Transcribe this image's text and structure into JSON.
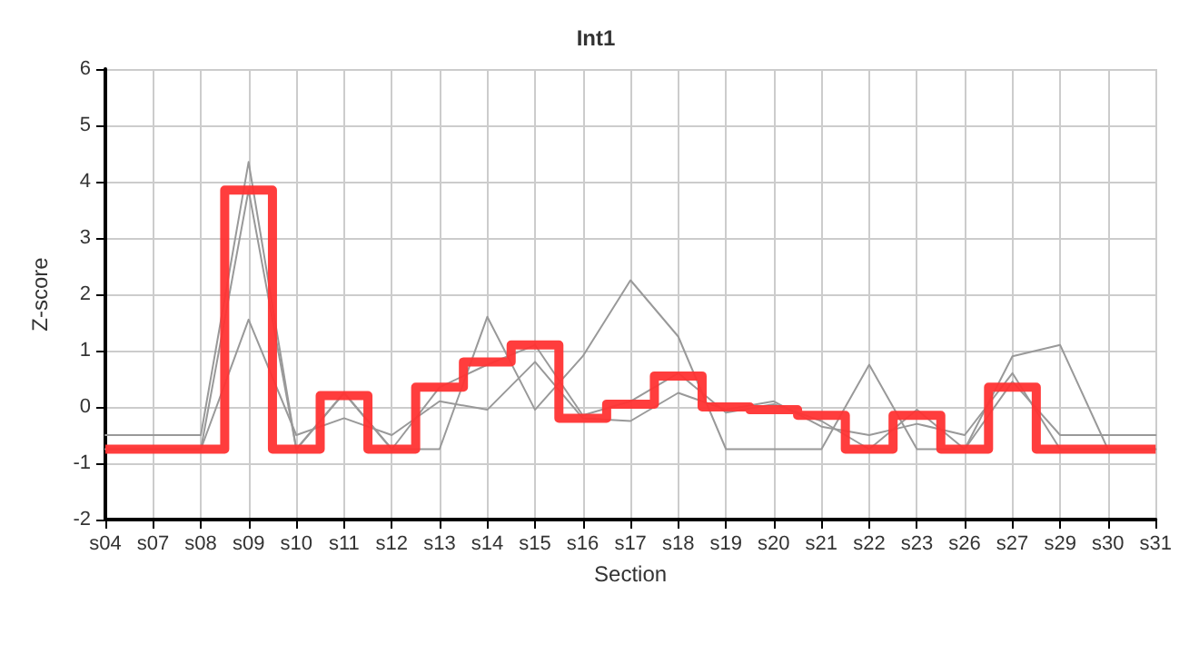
{
  "chart_data": {
    "type": "line",
    "title": "Int1",
    "xlabel": "Section",
    "ylabel": "Z-score",
    "categories": [
      "s04",
      "s07",
      "s08",
      "s09",
      "s10",
      "s11",
      "s12",
      "s13",
      "s14",
      "s15",
      "s16",
      "s17",
      "s18",
      "s19",
      "s20",
      "s21",
      "s22",
      "s23",
      "s26",
      "s27",
      "s29",
      "s30",
      "s31"
    ],
    "series": [
      {
        "color": "#999999",
        "values": [
          -0.5,
          -0.5,
          -0.5,
          4.35,
          -0.75,
          0.25,
          -0.75,
          0.35,
          0.75,
          1.1,
          -0.15,
          0.1,
          0.6,
          -0.1,
          0.05,
          -0.25,
          -0.75,
          -0.05,
          -0.75,
          0.45,
          -0.5,
          -0.5,
          -0.5
        ]
      },
      {
        "color": "#999999",
        "values": [
          -0.75,
          -0.75,
          -0.75,
          3.85,
          -0.75,
          0.25,
          -0.75,
          -0.75,
          1.6,
          -0.05,
          0.9,
          2.25,
          1.25,
          -0.75,
          -0.75,
          -0.75,
          0.75,
          -0.75,
          -0.75,
          0.9,
          1.1,
          -0.75,
          -0.75
        ]
      },
      {
        "color": "#999999",
        "values": [
          -0.75,
          -0.75,
          -0.75,
          1.55,
          -0.5,
          -0.2,
          -0.5,
          0.1,
          -0.05,
          0.8,
          -0.2,
          -0.25,
          0.25,
          -0.05,
          0.1,
          -0.35,
          -0.5,
          -0.3,
          -0.5,
          0.6,
          -0.75,
          -0.75,
          -0.75
        ]
      },
      {
        "type": "step",
        "color": "#ff3333",
        "values": [
          -0.75,
          -0.75,
          -0.75,
          3.85,
          -0.75,
          0.2,
          -0.75,
          0.35,
          0.8,
          1.1,
          -0.2,
          0.05,
          0.55,
          0.0,
          -0.05,
          -0.15,
          -0.75,
          -0.15,
          -0.75,
          0.35,
          -0.75,
          -0.75,
          -0.75
        ]
      }
    ],
    "ylim": [
      -2,
      6
    ],
    "yticks": [
      -2,
      -1,
      0,
      1,
      2,
      3,
      4,
      5,
      6
    ],
    "grid": true,
    "marker": "none",
    "line_style": "solid"
  }
}
